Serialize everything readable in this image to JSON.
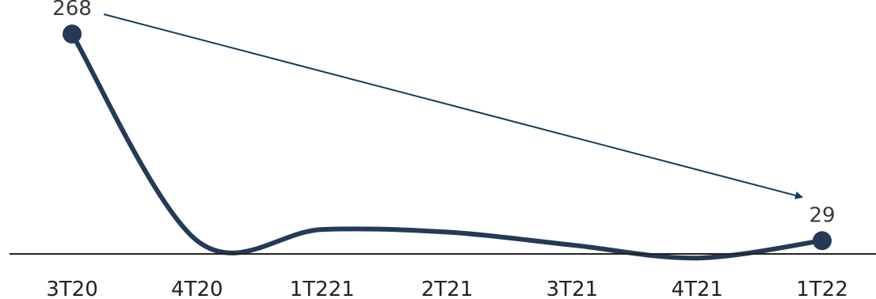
{
  "chart_data": {
    "type": "line",
    "categories": [
      "3T20",
      "4T20",
      "1T221",
      "2T21",
      "3T21",
      "4T21",
      "1T22"
    ],
    "values": [
      268,
      29,
      42,
      39,
      24,
      9,
      29
    ],
    "data_labels": [
      {
        "index": 0,
        "text": "268"
      },
      {
        "index": 6,
        "text": "29"
      }
    ],
    "ylim": [
      0,
      300
    ],
    "grid": false,
    "smooth": true,
    "annotations": [
      {
        "type": "trend-arrow",
        "from_index": 0,
        "to_index": 6
      }
    ],
    "colors": {
      "line": "#243a56",
      "marker": "#243a56",
      "arrow": "#0f3d5c",
      "axis": "#222222"
    }
  }
}
